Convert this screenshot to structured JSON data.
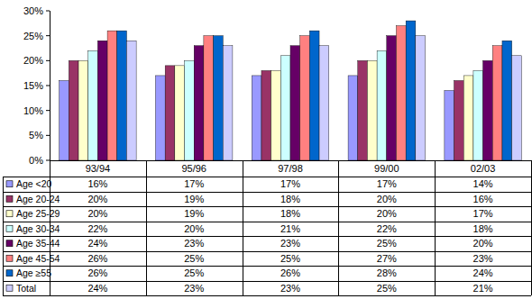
{
  "chart_data": {
    "type": "bar",
    "categories": [
      "93/94",
      "95/96",
      "97/98",
      "99/00",
      "02/03"
    ],
    "series": [
      {
        "name": "Age <20",
        "color": "#9999ff",
        "values": [
          16,
          17,
          17,
          17,
          14
        ],
        "value_labels": [
          "16%",
          "17%",
          "17%",
          "17%",
          "14%"
        ]
      },
      {
        "name": "Age 20-24",
        "color": "#993366",
        "values": [
          20,
          19,
          18,
          20,
          16
        ],
        "value_labels": [
          "20%",
          "19%",
          "18%",
          "20%",
          "16%"
        ]
      },
      {
        "name": "Age 25-29",
        "color": "#ffffcc",
        "values": [
          20,
          19,
          18,
          20,
          17
        ],
        "value_labels": [
          "20%",
          "19%",
          "18%",
          "20%",
          "17%"
        ]
      },
      {
        "name": "Age 30-34",
        "color": "#ccffff",
        "values": [
          22,
          20,
          21,
          22,
          18
        ],
        "value_labels": [
          "22%",
          "20%",
          "21%",
          "22%",
          "18%"
        ]
      },
      {
        "name": "Age 35-44",
        "color": "#660066",
        "values": [
          24,
          23,
          23,
          25,
          20
        ],
        "value_labels": [
          "24%",
          "23%",
          "23%",
          "25%",
          "20%"
        ]
      },
      {
        "name": "Age 45-54",
        "color": "#ff8080",
        "values": [
          26,
          25,
          25,
          27,
          23
        ],
        "value_labels": [
          "26%",
          "25%",
          "25%",
          "27%",
          "23%"
        ]
      },
      {
        "name": "Age ≥55",
        "color": "#0066cc",
        "values": [
          26,
          25,
          26,
          28,
          24
        ],
        "value_labels": [
          "26%",
          "25%",
          "26%",
          "28%",
          "24%"
        ]
      },
      {
        "name": "Total",
        "color": "#ccccff",
        "values": [
          24,
          23,
          23,
          25,
          21
        ],
        "value_labels": [
          "24%",
          "23%",
          "23%",
          "25%",
          "21%"
        ]
      }
    ],
    "ylim": [
      0,
      30
    ],
    "yticks": [
      {
        "value": 0,
        "label": "0%"
      },
      {
        "value": 5,
        "label": "5%"
      },
      {
        "value": 10,
        "label": "10%"
      },
      {
        "value": 15,
        "label": "15%"
      },
      {
        "value": 20,
        "label": "20%"
      },
      {
        "value": 25,
        "label": "25%"
      },
      {
        "value": 30,
        "label": "30%"
      }
    ],
    "grid": false
  }
}
